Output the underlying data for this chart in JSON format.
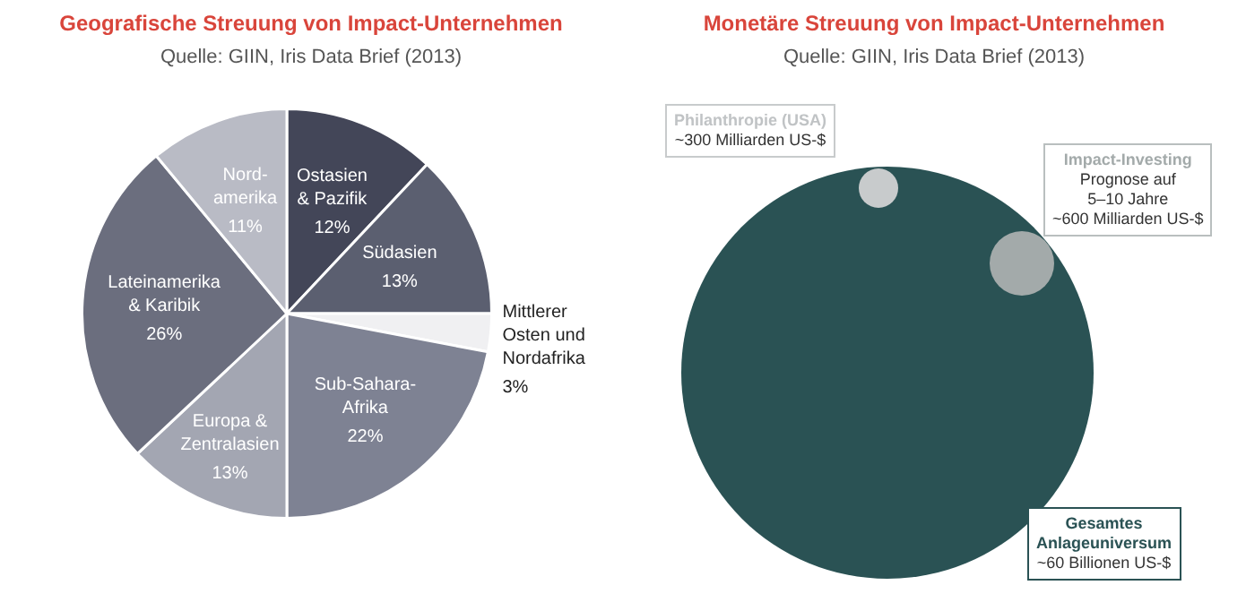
{
  "chart_data": [
    {
      "type": "pie",
      "title": "Geografische Streuung von Impact-Unternehmen",
      "subtitle": "Quelle: GIIN, Iris Data Brief (2013)",
      "categories": [
        "Ostasien\n& Pazifik",
        "Südasien",
        "Mittlerer\nOsten und\nNordafrika",
        "Sub-Sahara-\nAfrika",
        "Europa &\nZentralasien",
        "Lateinamerika\n& Karibik",
        "Nord-\namerika"
      ],
      "values": [
        12,
        13,
        3,
        22,
        13,
        26,
        11
      ],
      "colors": [
        "#434658",
        "#5b5f70",
        "#f0f0f2",
        "#7e8293",
        "#a3a6b2",
        "#6b6e7e",
        "#b9bbc5"
      ],
      "value_labels": [
        "12%",
        "13%",
        "3%",
        "22%",
        "13%",
        "26%",
        "11%"
      ]
    },
    {
      "type": "other",
      "title": "Monetäre Streuung von Impact-Unternehmen",
      "subtitle": "Quelle: GIIN, Iris Data Brief (2013)",
      "annotations": [
        "Philanthropie (USA)",
        "~300 Milliarden US-$",
        "Impact-Investing",
        "Prognose auf\n5–10 Jahre\n~600 Milliarden US-$",
        "Gesamtes\nAnlageuniversum",
        "~60 Billionen US-$"
      ],
      "colors": [
        "#c8cbcc",
        "#a3aaaa",
        "#2a5254"
      ]
    }
  ]
}
